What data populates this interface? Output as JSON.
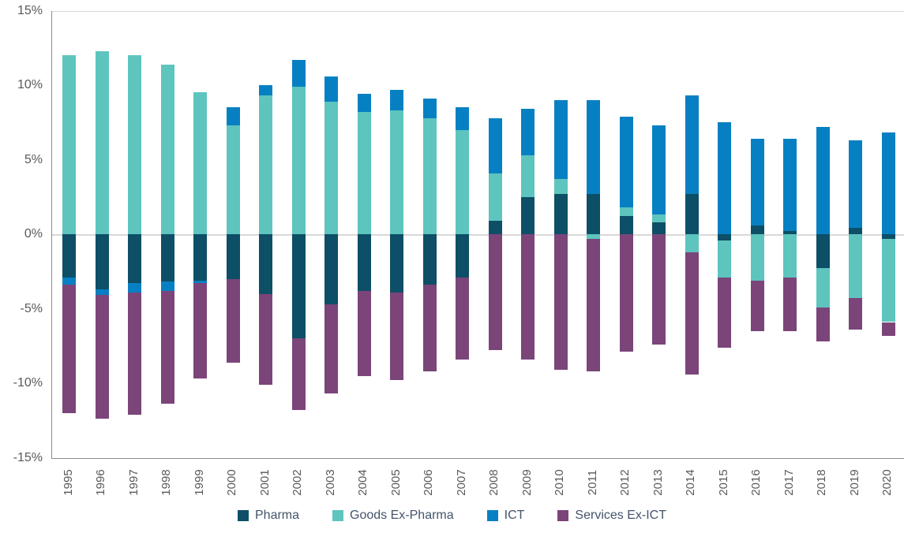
{
  "chart_data": {
    "type": "bar",
    "stacked": true,
    "title": "",
    "xlabel": "",
    "ylabel": "",
    "ylim": [
      -15,
      15
    ],
    "y_ticks": [
      {
        "value": 15,
        "label": "15%"
      },
      {
        "value": 10,
        "label": "10%"
      },
      {
        "value": 5,
        "label": "5%"
      },
      {
        "value": 0,
        "label": "0%"
      },
      {
        "value": -5,
        "label": "-5%"
      },
      {
        "value": -10,
        "label": "-10%"
      },
      {
        "value": -15,
        "label": "-15%"
      }
    ],
    "grid": "zero-line-only",
    "legend_position": "bottom",
    "categories": [
      "1995",
      "1996",
      "1997",
      "1998",
      "1999",
      "2000",
      "2001",
      "2002",
      "2003",
      "2004",
      "2005",
      "2006",
      "2007",
      "2008",
      "2009",
      "2010",
      "2011",
      "2012",
      "2013",
      "2014",
      "2015",
      "2016",
      "2017",
      "2018",
      "2019",
      "2020"
    ],
    "series": [
      {
        "name": "Pharma",
        "color": "#0d4f66",
        "values": [
          -2.9,
          -3.7,
          -3.3,
          -3.2,
          -3.1,
          -3.0,
          -4.0,
          -7.0,
          -4.7,
          -3.8,
          -3.9,
          -3.4,
          -2.9,
          0.9,
          2.5,
          2.7,
          2.7,
          1.2,
          0.8,
          2.7,
          -0.4,
          0.6,
          0.2,
          -2.3,
          0.4,
          -0.3
        ]
      },
      {
        "name": "Goods Ex-Pharma",
        "color": "#5ec4be",
        "values": [
          12.0,
          12.3,
          12.0,
          11.4,
          9.5,
          7.3,
          9.3,
          9.9,
          8.9,
          8.2,
          8.3,
          7.8,
          7.0,
          3.2,
          2.8,
          1.0,
          -0.3,
          0.6,
          0.5,
          -1.2,
          -2.5,
          -3.1,
          -2.9,
          -2.6,
          -4.3,
          -5.6
        ]
      },
      {
        "name": "ICT",
        "color": "#0780c3",
        "values": [
          -0.5,
          -0.4,
          -0.6,
          -0.6,
          -0.2,
          1.2,
          0.7,
          1.8,
          1.7,
          1.2,
          1.4,
          1.3,
          1.5,
          3.7,
          3.1,
          5.3,
          6.3,
          6.1,
          6.0,
          6.6,
          7.5,
          5.8,
          6.2,
          7.2,
          5.9,
          6.8
        ]
      },
      {
        "name": "Services Ex-ICT",
        "color": "#7b4579",
        "values": [
          -8.6,
          -8.3,
          -8.2,
          -7.6,
          -6.4,
          -5.6,
          -6.1,
          -4.8,
          -6.0,
          -5.7,
          -5.9,
          -5.8,
          -5.5,
          -7.8,
          -8.4,
          -9.1,
          -8.9,
          -7.9,
          -7.4,
          -8.2,
          -4.7,
          -3.4,
          -3.6,
          -2.3,
          -2.1,
          -0.9
        ]
      }
    ]
  },
  "colors": {
    "axis_line": "#8c8c8c",
    "zero_line": "#d9d9d9",
    "top_line": "#d9d9d9",
    "tick_text": "#595959",
    "year_text": "#595959",
    "legend_text": "#44546a",
    "background": "#ffffff"
  }
}
